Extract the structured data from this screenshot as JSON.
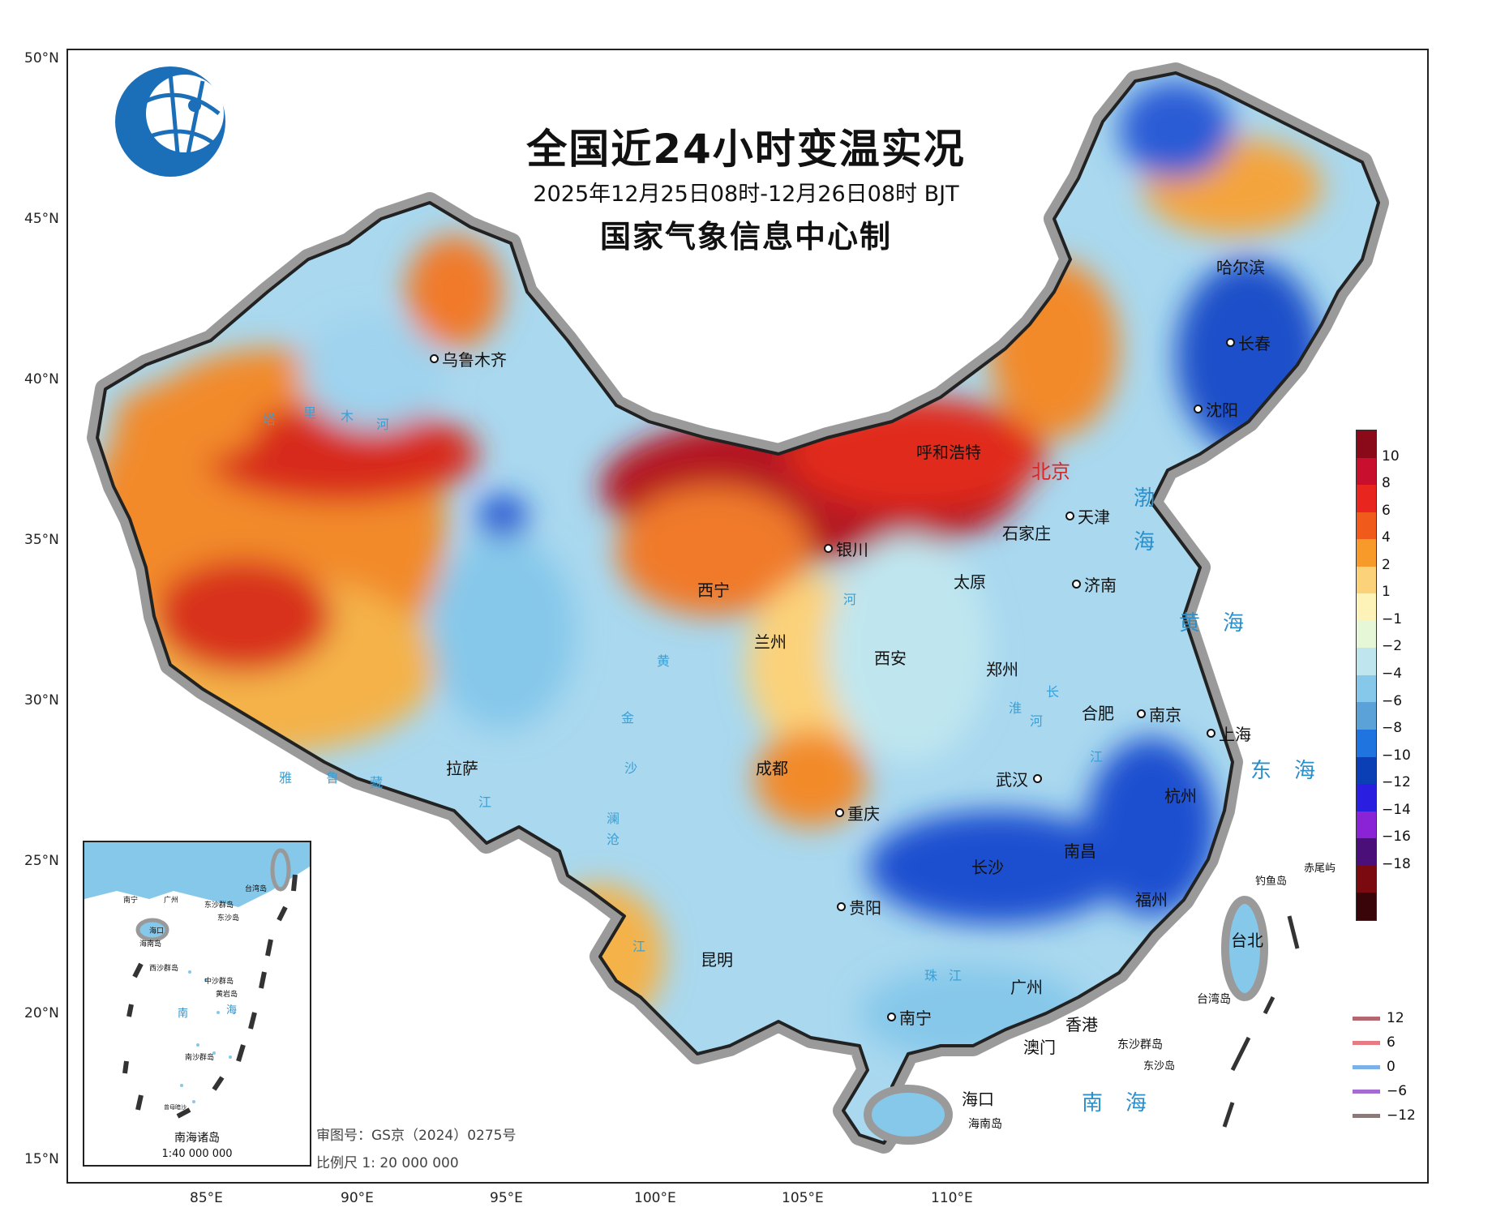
{
  "header": {
    "title": "全国近24小时变温实况",
    "subtitle": "2025年12月25日08时-12月26日08时 BJT",
    "producer": "国家气象信息中心制"
  },
  "axes": {
    "lat_labels": [
      "50°N",
      "45°N",
      "40°N",
      "35°N",
      "30°N",
      "25°N",
      "20°N",
      "15°N"
    ],
    "lon_labels": [
      "85°E",
      "90°E",
      "95°E",
      "100°E",
      "105°E",
      "110°E"
    ]
  },
  "cities": [
    {
      "name": "乌鲁木齐"
    },
    {
      "name": "呼和浩特"
    },
    {
      "name": "北京",
      "capital": true
    },
    {
      "name": "天津"
    },
    {
      "name": "哈尔滨"
    },
    {
      "name": "长春"
    },
    {
      "name": "沈阳"
    },
    {
      "name": "石家庄"
    },
    {
      "name": "银川"
    },
    {
      "name": "太原"
    },
    {
      "name": "济南"
    },
    {
      "name": "西宁"
    },
    {
      "name": "兰州"
    },
    {
      "name": "西安"
    },
    {
      "name": "郑州"
    },
    {
      "name": "合肥"
    },
    {
      "name": "南京"
    },
    {
      "name": "上海"
    },
    {
      "name": "拉萨"
    },
    {
      "name": "成都"
    },
    {
      "name": "武汉"
    },
    {
      "name": "杭州"
    },
    {
      "name": "重庆"
    },
    {
      "name": "长沙"
    },
    {
      "name": "南昌"
    },
    {
      "name": "福州"
    },
    {
      "name": "贵阳"
    },
    {
      "name": "昆明"
    },
    {
      "name": "台北"
    },
    {
      "name": "广州"
    },
    {
      "name": "南宁"
    },
    {
      "name": "香港"
    },
    {
      "name": "澳门"
    },
    {
      "name": "海口"
    }
  ],
  "places": [
    "海南岛",
    "东沙群岛",
    "东沙岛",
    "台湾岛",
    "钓鱼岛",
    "赤尾屿"
  ],
  "water_labels": [
    "渤",
    "海",
    "黄海",
    "东海",
    "南海"
  ],
  "rivers": [
    "塔",
    "里",
    "木",
    "河",
    "黄",
    "河",
    "金",
    "沙",
    "雅",
    "鲁",
    "藏",
    "江",
    "长",
    "江",
    "澜",
    "沧",
    "江",
    "淮",
    "河",
    "珠",
    "江"
  ],
  "legend": {
    "labels": [
      "10",
      "8",
      "6",
      "4",
      "2",
      "1",
      "−1",
      "−2",
      "−4",
      "−6",
      "−8",
      "−10",
      "−12",
      "−14",
      "−16",
      "−18"
    ],
    "colors": [
      "#8b0a1a",
      "#c8102e",
      "#e8251f",
      "#f05a1a",
      "#f89a2a",
      "#fbd27a",
      "#fdf3b8",
      "#e6f7d8",
      "#bfe6ef",
      "#86c8ea",
      "#5aa2d8",
      "#1f74e0",
      "#0a3fb5",
      "#2a1fe0",
      "#8a22d6",
      "#4b0f7a",
      "#7a0a10",
      "#3a0508"
    ]
  },
  "line_legend": [
    {
      "label": "12",
      "color": "#b5676f"
    },
    {
      "label": "6",
      "color": "#e87a84"
    },
    {
      "label": "0",
      "color": "#7ab1e8"
    },
    {
      "label": "−6",
      "color": "#a46bd3"
    },
    {
      "label": "−12",
      "color": "#8a7a7a"
    }
  ],
  "inset": {
    "title": "南海诸岛",
    "scale": "1:40 000 000",
    "labels": [
      "南宁",
      "广州",
      "台湾岛",
      "海口",
      "海南岛",
      "东沙群岛",
      "东沙岛",
      "西沙群岛",
      "中沙群岛",
      "黄岩岛",
      "南",
      "海",
      "南沙群岛",
      "曾母暗沙"
    ]
  },
  "footer": {
    "approval": "审图号：GS京（2024）0275号",
    "scale": "比例尺 1: 20 000 000"
  }
}
